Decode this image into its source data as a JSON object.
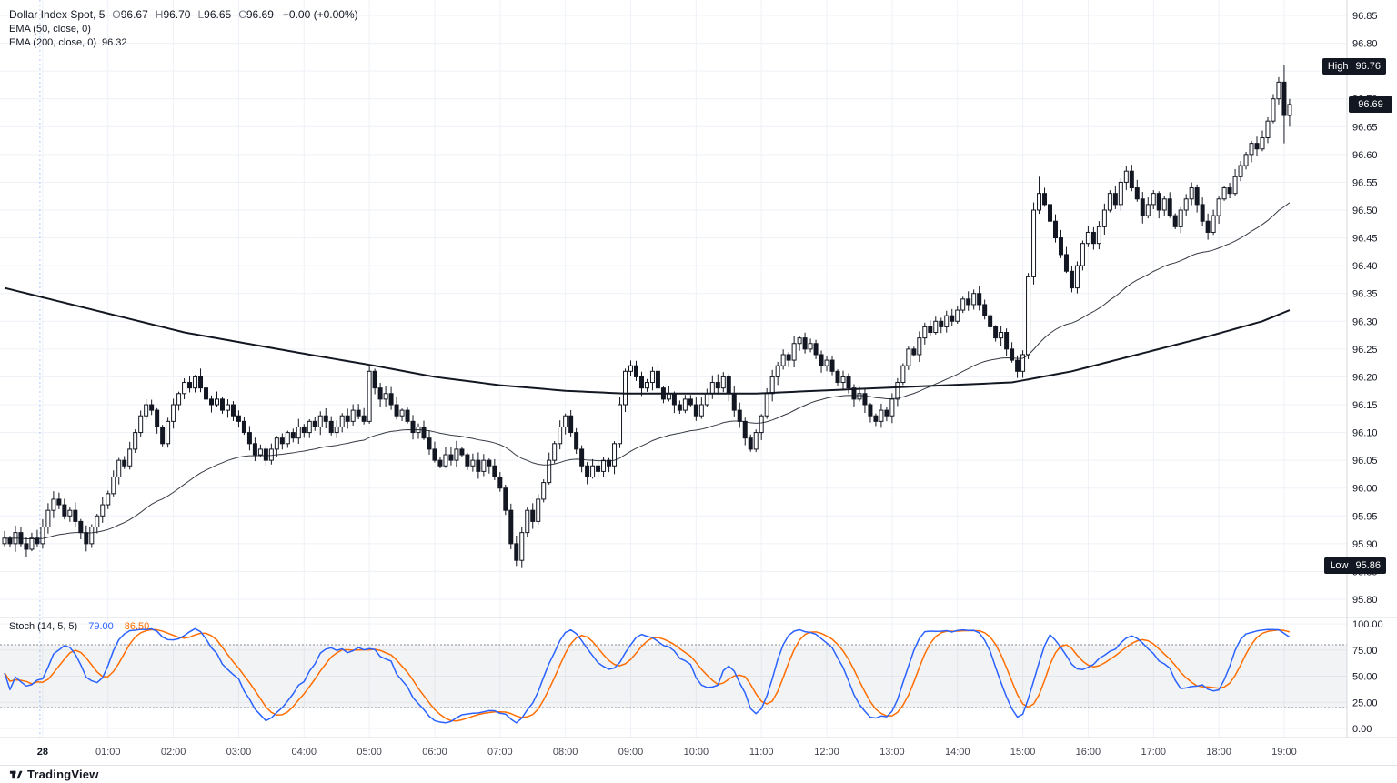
{
  "legend": {
    "title": "Dollar Index Spot, 5",
    "ohlc": [
      {
        "label": "O",
        "value": "96.67"
      },
      {
        "label": "H",
        "value": "96.70"
      },
      {
        "label": "L",
        "value": "96.65"
      },
      {
        "label": "C",
        "value": "96.69"
      }
    ],
    "change": "+0.00 (+0.00%)",
    "ema50": "EMA (50, close, 0)",
    "ema200": "EMA (200, close, 0)",
    "ema200_value": "96.32"
  },
  "stoch_legend": {
    "label": "Stoch (14, 5, 5)",
    "k": "79.00",
    "d": "86.50"
  },
  "badges": {
    "high_label": "High",
    "high": "96.76",
    "last": "96.69",
    "low_label": "Low",
    "low": "95.86"
  },
  "price_axis_ticks": [
    "96.85",
    "96.80",
    "96.75",
    "96.70",
    "96.65",
    "96.60",
    "96.55",
    "96.50",
    "96.45",
    "96.40",
    "96.35",
    "96.30",
    "96.25",
    "96.20",
    "96.15",
    "96.10",
    "96.05",
    "96.00",
    "95.95",
    "95.90",
    "95.85",
    "95.80"
  ],
  "stoch_axis_ticks": [
    "100.00",
    "75.00",
    "50.00",
    "25.00",
    "0.00"
  ],
  "time_axis": {
    "day_label": "28",
    "hours": [
      "01:00",
      "02:00",
      "03:00",
      "04:00",
      "05:00",
      "06:00",
      "07:00",
      "08:00",
      "09:00",
      "10:00",
      "11:00",
      "12:00",
      "13:00",
      "14:00",
      "15:00",
      "16:00",
      "17:00",
      "18:00",
      "19:00"
    ]
  },
  "footer": {
    "brand": "TradingView"
  },
  "colors": {
    "up_body": "#ffffff",
    "down_body": "#131722",
    "candle_line": "#131722",
    "ema": "#131722",
    "stoch_k": "#2962ff",
    "stoch_d": "#ff6d00",
    "badge_bg": "#131722",
    "grid": "#eef1f7",
    "session_line": "#2962ff"
  },
  "chart_data": {
    "type": "candlestick",
    "symbol": "Dollar Index Spot",
    "interval_minutes": 5,
    "visible_high": 96.76,
    "visible_low": 95.86,
    "last_bar": {
      "open": 96.67,
      "high": 96.7,
      "low": 96.65,
      "close": 96.69
    },
    "price_axis_range": [
      95.77,
      96.88
    ],
    "stoch_axis_range": [
      0,
      100
    ],
    "first_label_bar": 7,
    "bars_per_hour": 12,
    "closes": [
      95.91,
      95.9,
      95.92,
      95.9,
      95.89,
      95.91,
      95.9,
      95.93,
      95.96,
      95.98,
      95.97,
      95.95,
      95.96,
      95.94,
      95.92,
      95.9,
      95.93,
      95.95,
      95.97,
      95.99,
      96.02,
      96.05,
      96.04,
      96.07,
      96.1,
      96.13,
      96.15,
      96.14,
      96.11,
      96.08,
      96.12,
      96.15,
      96.17,
      96.19,
      96.18,
      96.2,
      96.18,
      96.16,
      96.15,
      96.16,
      96.14,
      96.15,
      96.13,
      96.12,
      96.1,
      96.08,
      96.06,
      96.07,
      96.05,
      96.07,
      96.09,
      96.08,
      96.1,
      96.09,
      96.11,
      96.1,
      96.12,
      96.11,
      96.13,
      96.12,
      96.1,
      96.11,
      96.13,
      96.12,
      96.14,
      96.13,
      96.12,
      96.21,
      96.18,
      96.16,
      96.17,
      96.15,
      96.13,
      96.14,
      96.12,
      96.1,
      96.11,
      96.09,
      96.07,
      96.05,
      96.04,
      96.06,
      96.05,
      96.07,
      96.06,
      96.04,
      96.05,
      96.03,
      96.05,
      96.04,
      96.02,
      96.0,
      95.96,
      95.9,
      95.87,
      95.92,
      95.96,
      95.94,
      95.98,
      96.01,
      96.05,
      96.08,
      96.11,
      96.13,
      96.1,
      96.07,
      96.04,
      96.02,
      96.04,
      96.03,
      96.05,
      96.04,
      96.08,
      96.15,
      96.21,
      96.22,
      96.2,
      96.18,
      96.19,
      96.21,
      96.18,
      96.16,
      96.17,
      96.15,
      96.14,
      96.16,
      96.15,
      96.13,
      96.15,
      96.17,
      96.19,
      96.18,
      96.2,
      96.17,
      96.14,
      96.12,
      96.09,
      96.07,
      96.1,
      96.13,
      96.17,
      96.2,
      96.22,
      96.24,
      96.23,
      96.26,
      96.27,
      96.25,
      96.26,
      96.24,
      96.22,
      96.23,
      96.21,
      96.19,
      96.2,
      96.18,
      96.16,
      96.17,
      96.15,
      96.13,
      96.12,
      96.14,
      96.13,
      96.16,
      96.19,
      96.22,
      96.25,
      96.24,
      96.27,
      96.29,
      96.28,
      96.3,
      96.29,
      96.31,
      96.3,
      96.32,
      96.34,
      96.33,
      96.35,
      96.33,
      96.31,
      96.29,
      96.27,
      96.28,
      96.25,
      96.23,
      96.21,
      96.24,
      96.38,
      96.5,
      96.53,
      96.51,
      96.48,
      96.45,
      96.42,
      96.39,
      96.36,
      96.4,
      96.44,
      96.46,
      96.44,
      96.47,
      96.5,
      96.53,
      96.51,
      96.55,
      96.57,
      96.54,
      96.52,
      96.49,
      96.51,
      96.53,
      96.5,
      96.52,
      96.49,
      96.47,
      96.5,
      96.52,
      96.54,
      96.51,
      96.48,
      96.46,
      96.49,
      96.52,
      96.54,
      96.53,
      96.56,
      96.58,
      96.6,
      96.62,
      96.61,
      96.63,
      96.66,
      96.7,
      96.73,
      96.67,
      96.69
    ],
    "wick_overrides": [
      {
        "bar": 94,
        "low": 95.86
      },
      {
        "bar": 190,
        "high": 96.56
      },
      {
        "bar": 235,
        "high": 96.76,
        "low": 96.62
      },
      {
        "bar": 236,
        "high": 96.7,
        "low": 96.65
      }
    ],
    "ema200_waypoints": [
      [
        0,
        96.36
      ],
      [
        33,
        96.28
      ],
      [
        56,
        96.24
      ],
      [
        68,
        96.22
      ],
      [
        79,
        96.2
      ],
      [
        91,
        96.185
      ],
      [
        103,
        96.175
      ],
      [
        114,
        96.17
      ],
      [
        126,
        96.17
      ],
      [
        138,
        96.17
      ],
      [
        149,
        96.175
      ],
      [
        161,
        96.18
      ],
      [
        173,
        96.185
      ],
      [
        185,
        96.19
      ],
      [
        196,
        96.21
      ],
      [
        208,
        96.24
      ],
      [
        220,
        96.27
      ],
      [
        231,
        96.3
      ],
      [
        236,
        96.32
      ]
    ],
    "indicators": {
      "ema50_period": 50,
      "ema200_period": 200,
      "ema200_last": 96.32,
      "stoch": {
        "k": 14,
        "k_smooth": 5,
        "d": 5,
        "upper_band": 80,
        "lower_band": 20,
        "k_last": 79.0,
        "d_last": 86.5
      }
    }
  }
}
